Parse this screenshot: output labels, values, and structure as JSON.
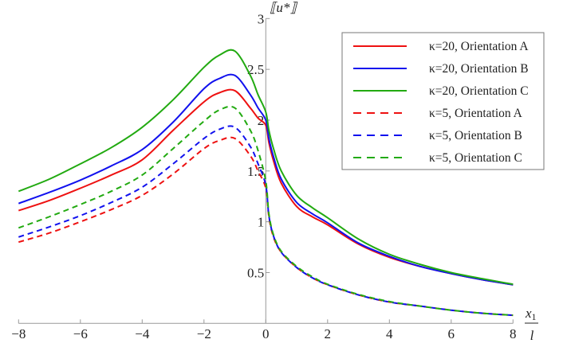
{
  "chart_data": {
    "type": "line",
    "title": "",
    "xlabel_num": "x",
    "xlabel_sub": "1",
    "xlabel_den": "l",
    "ylabel": "⟦u*⟧",
    "xlim": [
      -8,
      8
    ],
    "ylim": [
      0,
      3
    ],
    "grid": false,
    "legend_placement": "top-right",
    "x_ticks": [
      -8,
      -6,
      -4,
      -2,
      0,
      2,
      4,
      6,
      8
    ],
    "x_tick_labels": [
      "−8",
      "−6",
      "−4",
      "−2",
      "0",
      "2",
      "4",
      "6",
      "8"
    ],
    "y_ticks": [
      0.5,
      1,
      1.5,
      2,
      2.5,
      3
    ],
    "y_tick_labels": [
      "0.5",
      "1",
      "1.5",
      "2",
      "2.5",
      "3"
    ],
    "x": [
      -8,
      -7,
      -6,
      -5,
      -4,
      -3,
      -2,
      -1.5,
      -1,
      -0.5,
      -0.25,
      0,
      0.1,
      0.25,
      0.5,
      1,
      1.5,
      2,
      3,
      4,
      5,
      6,
      7,
      8
    ],
    "series": [
      {
        "name": "κ=20, Orientation A",
        "color": "#ee1111",
        "dash": false,
        "values": [
          1.11,
          1.21,
          1.33,
          1.46,
          1.61,
          1.9,
          2.18,
          2.27,
          2.29,
          2.12,
          2.02,
          1.95,
          1.78,
          1.6,
          1.38,
          1.15,
          1.05,
          0.97,
          0.78,
          0.65,
          0.56,
          0.49,
          0.43,
          0.38
        ]
      },
      {
        "name": "κ=20, Orientation B",
        "color": "#1111ee",
        "dash": false,
        "values": [
          1.18,
          1.29,
          1.41,
          1.55,
          1.71,
          1.98,
          2.31,
          2.41,
          2.44,
          2.25,
          2.12,
          2.0,
          1.82,
          1.64,
          1.42,
          1.19,
          1.08,
          0.99,
          0.79,
          0.66,
          0.56,
          0.49,
          0.43,
          0.38
        ]
      },
      {
        "name": "κ=20, Orientation C",
        "color": "#22aa11",
        "dash": false,
        "values": [
          1.3,
          1.42,
          1.57,
          1.73,
          1.93,
          2.2,
          2.52,
          2.64,
          2.68,
          2.44,
          2.25,
          2.08,
          1.9,
          1.72,
          1.5,
          1.26,
          1.14,
          1.04,
          0.83,
          0.68,
          0.58,
          0.5,
          0.44,
          0.385
        ]
      },
      {
        "name": "κ=5, Orientation A",
        "color": "#ee1111",
        "dash": true,
        "values": [
          0.8,
          0.89,
          1.0,
          1.12,
          1.26,
          1.47,
          1.72,
          1.8,
          1.82,
          1.65,
          1.5,
          1.33,
          1.05,
          0.85,
          0.7,
          0.55,
          0.45,
          0.38,
          0.28,
          0.21,
          0.17,
          0.13,
          0.1,
          0.08
        ]
      },
      {
        "name": "κ=5, Orientation B",
        "color": "#1111ee",
        "dash": true,
        "values": [
          0.85,
          0.95,
          1.06,
          1.19,
          1.34,
          1.57,
          1.82,
          1.91,
          1.93,
          1.74,
          1.57,
          1.36,
          1.06,
          0.86,
          0.7,
          0.55,
          0.45,
          0.38,
          0.28,
          0.21,
          0.17,
          0.13,
          0.1,
          0.08
        ]
      },
      {
        "name": "κ=5, Orientation C",
        "color": "#22aa11",
        "dash": true,
        "values": [
          0.94,
          1.05,
          1.17,
          1.3,
          1.46,
          1.72,
          1.99,
          2.1,
          2.12,
          1.9,
          1.7,
          1.4,
          1.08,
          0.87,
          0.71,
          0.56,
          0.46,
          0.385,
          0.285,
          0.215,
          0.17,
          0.13,
          0.1,
          0.08
        ]
      }
    ]
  }
}
